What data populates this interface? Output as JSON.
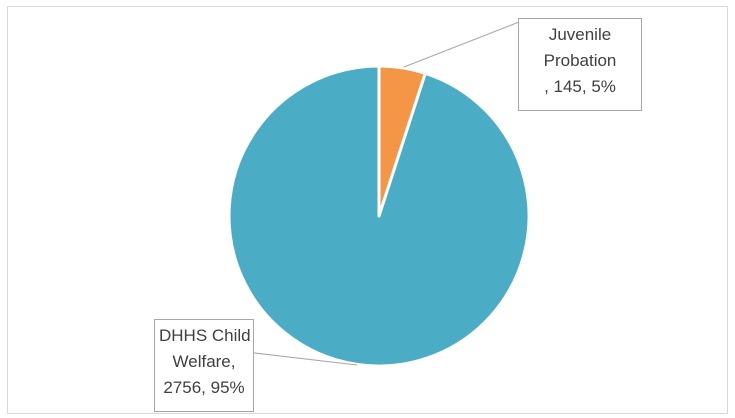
{
  "chart_data": {
    "type": "pie",
    "categories": [
      "Juvenile Probation",
      "DHHS Child Welfare"
    ],
    "values": [
      145,
      2756
    ],
    "percentages": [
      "5%",
      "95%"
    ],
    "colors": [
      "#f59646",
      "#4bacc6"
    ],
    "title": "",
    "data_labels": [
      {
        "lines": [
          "Juvenile",
          "Probation",
          ", 145, 5%"
        ]
      },
      {
        "lines": [
          "DHHS Child",
          "Welfare,",
          "2756, 95%"
        ]
      }
    ]
  }
}
